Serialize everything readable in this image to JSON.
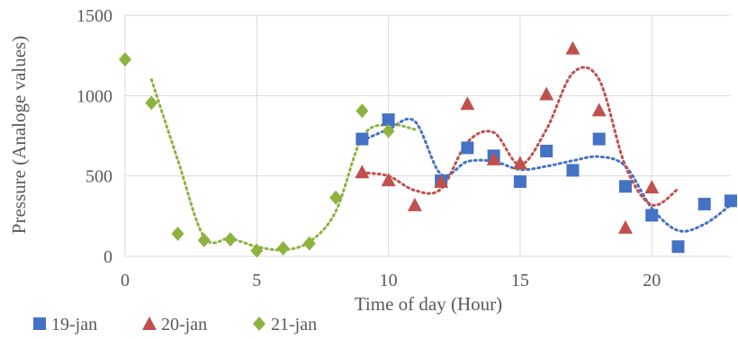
{
  "chart_data": {
    "type": "scatter",
    "title": "",
    "xlabel": "Time of day (Hour)",
    "ylabel": "Pressure (Analoge values)",
    "xlim": [
      0,
      23
    ],
    "ylim": [
      0,
      1500
    ],
    "x_ticks": [
      0,
      5,
      10,
      15,
      20
    ],
    "y_ticks": [
      0,
      500,
      1000,
      1500
    ],
    "grid": true,
    "legend_position": "bottom-left",
    "series": [
      {
        "name": "19-jan",
        "marker": "square",
        "color": "#4472C4",
        "points": [
          [
            9,
            730
          ],
          [
            10,
            850
          ],
          [
            12,
            470
          ],
          [
            13,
            675
          ],
          [
            14,
            625
          ],
          [
            15,
            465
          ],
          [
            16,
            655
          ],
          [
            17,
            535
          ],
          [
            18,
            730
          ],
          [
            19,
            435
          ],
          [
            20,
            255
          ],
          [
            21,
            60
          ],
          [
            22,
            325
          ],
          [
            23,
            345
          ]
        ],
        "trend": [
          [
            9,
            720
          ],
          [
            10,
            790
          ],
          [
            11,
            840
          ],
          [
            12,
            510
          ],
          [
            13,
            590
          ],
          [
            14,
            590
          ],
          [
            15,
            540
          ],
          [
            16,
            560
          ],
          [
            17,
            595
          ],
          [
            18,
            620
          ],
          [
            19,
            560
          ],
          [
            20,
            300
          ],
          [
            21,
            160
          ],
          [
            22,
            200
          ],
          [
            23,
            320
          ]
        ]
      },
      {
        "name": "20-jan",
        "marker": "triangle",
        "color": "#C0504D",
        "points": [
          [
            9,
            525
          ],
          [
            10,
            475
          ],
          [
            11,
            320
          ],
          [
            12,
            465
          ],
          [
            13,
            950
          ],
          [
            14,
            605
          ],
          [
            15,
            580
          ],
          [
            16,
            1010
          ],
          [
            17,
            1295
          ],
          [
            18,
            910
          ],
          [
            19,
            180
          ],
          [
            20,
            430
          ]
        ],
        "trend": [
          [
            9,
            520
          ],
          [
            10,
            500
          ],
          [
            11,
            410
          ],
          [
            12,
            420
          ],
          [
            13,
            710
          ],
          [
            14,
            770
          ],
          [
            15,
            570
          ],
          [
            16,
            790
          ],
          [
            17,
            1140
          ],
          [
            18,
            1100
          ],
          [
            19,
            560
          ],
          [
            20,
            320
          ],
          [
            21,
            420
          ]
        ]
      },
      {
        "name": "21-jan",
        "marker": "diamond",
        "color": "#8DB33F",
        "points": [
          [
            0,
            1225
          ],
          [
            1,
            955
          ],
          [
            2,
            140
          ],
          [
            3,
            100
          ],
          [
            4,
            105
          ],
          [
            5,
            35
          ],
          [
            6,
            50
          ],
          [
            7,
            80
          ],
          [
            8,
            365
          ],
          [
            9,
            905
          ],
          [
            10,
            780
          ]
        ],
        "trend": [
          [
            1,
            1100
          ],
          [
            2,
            600
          ],
          [
            3,
            120
          ],
          [
            4,
            110
          ],
          [
            5,
            60
          ],
          [
            6,
            40
          ],
          [
            7,
            90
          ],
          [
            8,
            280
          ],
          [
            9,
            740
          ],
          [
            10,
            820
          ],
          [
            11,
            790
          ]
        ]
      }
    ]
  }
}
